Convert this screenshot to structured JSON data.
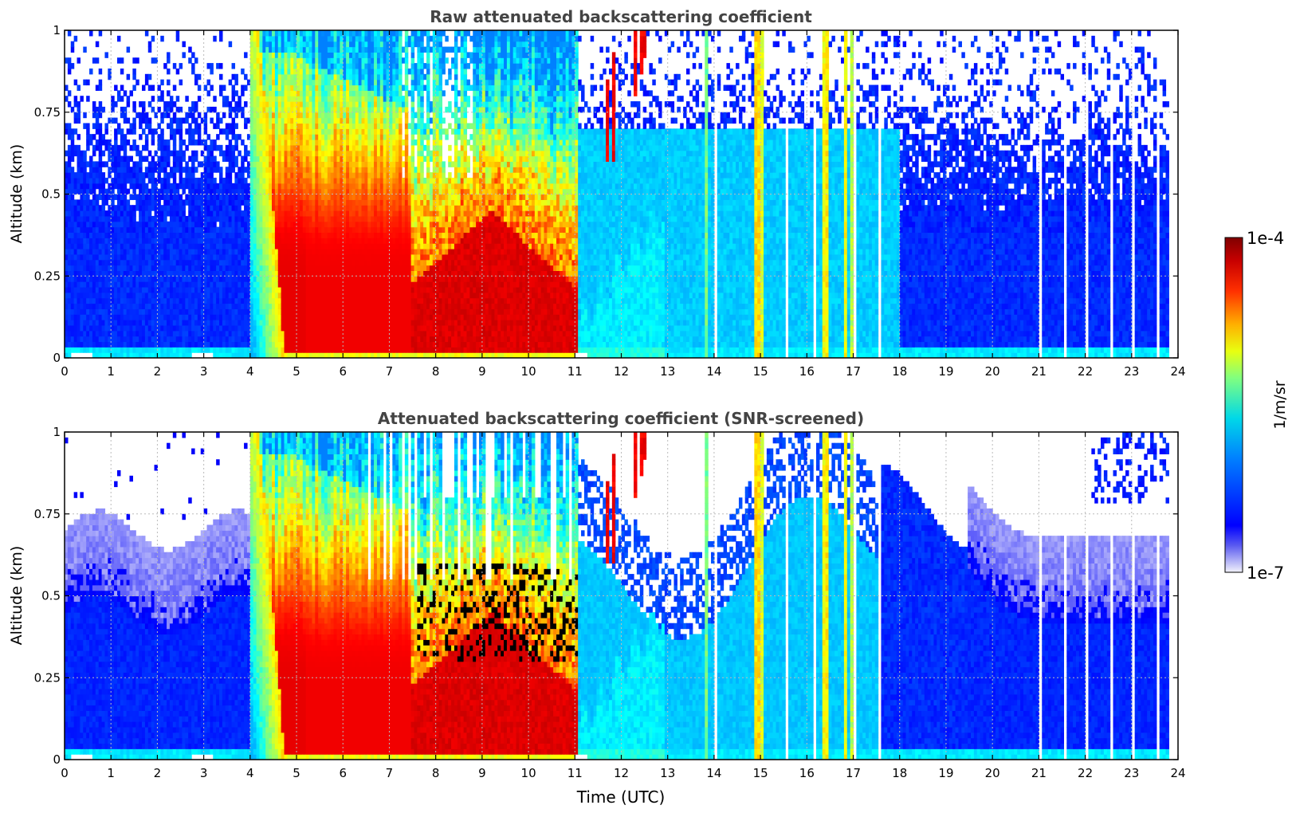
{
  "chart_data": [
    {
      "type": "heatmap",
      "title": "Raw attenuated backscattering coefficient",
      "xlabel": "",
      "ylabel": "Altitude (km)",
      "xlim": [
        0,
        24
      ],
      "ylim": [
        0,
        1
      ],
      "xticks": [
        "0",
        "1",
        "2",
        "3",
        "4",
        "5",
        "6",
        "7",
        "8",
        "9",
        "10",
        "11",
        "12",
        "13",
        "14",
        "15",
        "16",
        "17",
        "18",
        "19",
        "20",
        "21",
        "22",
        "23",
        "24"
      ],
      "yticks": [
        "0",
        "0.25",
        "0.5",
        "0.75",
        "1"
      ],
      "grid": true,
      "scale": "log",
      "screened": false,
      "features": {
        "cloud_event": {
          "start": 4.0,
          "end": 11.1,
          "max_altitude": 1.0
        },
        "upper_streaks": {
          "start": 11.1,
          "end": 12.8,
          "altitude_range": [
            0.55,
            1.0
          ]
        },
        "narrow_columns": [
          13.8,
          15.0,
          16.4,
          16.9
        ],
        "data_end": 23.8
      }
    },
    {
      "type": "heatmap",
      "title": "Attenuated backscattering coefficient (SNR-screened)",
      "xlabel": "Time (UTC)",
      "ylabel": "Altitude (km)",
      "xlim": [
        0,
        24
      ],
      "ylim": [
        0,
        1
      ],
      "xticks": [
        "0",
        "1",
        "2",
        "3",
        "4",
        "5",
        "6",
        "7",
        "8",
        "9",
        "10",
        "11",
        "12",
        "13",
        "14",
        "15",
        "16",
        "17",
        "18",
        "19",
        "20",
        "21",
        "22",
        "23",
        "24"
      ],
      "yticks": [
        "0",
        "0.25",
        "0.5",
        "0.75",
        "1"
      ],
      "grid": true,
      "scale": "log",
      "screened": true,
      "features": {
        "cloud_event": {
          "start": 4.0,
          "end": 11.1,
          "max_altitude": 1.0
        },
        "narrow_columns": [
          13.8,
          15.0,
          16.4,
          16.9
        ],
        "data_end": 23.8
      }
    }
  ],
  "colorbar": {
    "label": "1/m/sr",
    "min_label": "1e-7",
    "max_label": "1e-4",
    "colormap": "jet",
    "min_color": "#e8e8f8",
    "max_color": "#800000"
  },
  "colors": {
    "title": "#444444",
    "axis": "#000000",
    "grid": "#bbbbbb",
    "background": "#ffffff"
  }
}
